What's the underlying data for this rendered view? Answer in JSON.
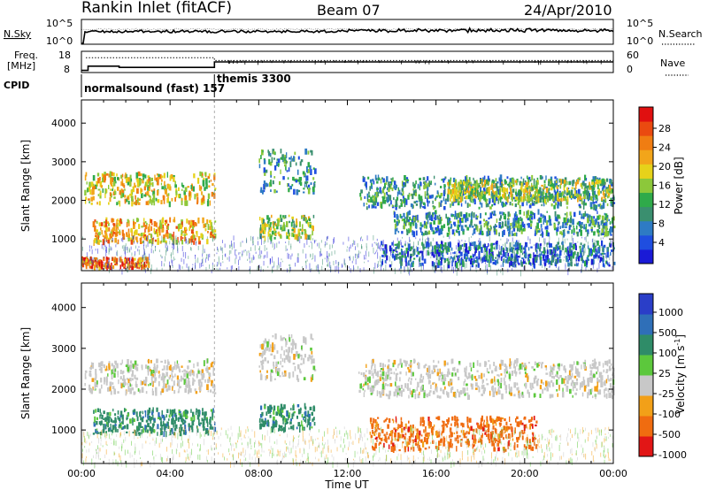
{
  "header": {
    "title": "Rankin Inlet (fitACF)",
    "beam": "Beam 07",
    "date": "24/Apr/2010"
  },
  "strip_panels": {
    "nsky_label": "N.Sky",
    "nsky_ticks": [
      "10^5",
      "10^0"
    ],
    "nsearch_label": "N.Search",
    "nsearch_ticks": [
      "10^5",
      "10^0"
    ],
    "freq_label_top": "Freq.",
    "freq_label_bottom": "[MHz]",
    "freq_ticks": [
      "18",
      "8"
    ],
    "nave_label": "Nave",
    "nave_ticks": [
      "60",
      "0"
    ],
    "cpid_label": "CPID",
    "modes": [
      {
        "name": "normalsound (fast) 157",
        "start_hour": 0,
        "end_hour": 6
      },
      {
        "name": "themis 3300",
        "start_hour": 6,
        "end_hour": 24
      }
    ]
  },
  "power_colorbar": {
    "title": "Power [dB]",
    "ticks": [
      "28",
      "24",
      "20",
      "16",
      "12",
      "8",
      "4"
    ],
    "colors": [
      "#1a1ad6",
      "#1f4ee0",
      "#2e7bc4",
      "#3a8f6f",
      "#2faa4a",
      "#8cc83a",
      "#e6d21a",
      "#f2a51a",
      "#f07d12",
      "#ea4a10",
      "#e01010"
    ]
  },
  "velocity_colorbar": {
    "title": "Velocity [m s",
    "title_exponent": "-1",
    "title_close": "]",
    "ticks": [
      "1000",
      "500",
      "100",
      "25",
      "-25",
      "-100",
      "-500",
      "-1000"
    ],
    "colors": [
      "#2a3ec8",
      "#2f6fb8",
      "#2f8c68",
      "#5cc83c",
      "#c8c8c8",
      "#f2a018",
      "#f06c10",
      "#e21616"
    ]
  },
  "chart_data": [
    {
      "type": "heatmap",
      "panel": "power",
      "ylabel": "Slant Range [km]",
      "xlim": [
        0,
        24
      ],
      "ylim": [
        180,
        4600
      ],
      "yticks": [
        1000,
        2000,
        3000,
        4000
      ],
      "series": [
        {
          "start_hour": 0.1,
          "end_hour": 6.0,
          "range_km": [
            1900,
            2700
          ],
          "power_db": 18
        },
        {
          "start_hour": 0.5,
          "end_hour": 6.0,
          "range_km": [
            900,
            1500
          ],
          "power_db": 22
        },
        {
          "start_hour": 0.0,
          "end_hour": 3.0,
          "range_km": [
            250,
            500
          ],
          "power_db": 24
        },
        {
          "start_hour": 8.0,
          "end_hour": 10.5,
          "range_km": [
            2200,
            3300
          ],
          "power_db": 10
        },
        {
          "start_hour": 8.0,
          "end_hour": 10.5,
          "range_km": [
            1000,
            1600
          ],
          "power_db": 14
        },
        {
          "start_hour": 12.5,
          "end_hour": 24.0,
          "range_km": [
            1800,
            2600
          ],
          "power_db": 10
        },
        {
          "start_hour": 14.0,
          "end_hour": 24.0,
          "range_km": [
            1100,
            1700
          ],
          "power_db": 9
        },
        {
          "start_hour": 13.5,
          "end_hour": 24.0,
          "range_km": [
            300,
            900
          ],
          "power_db": 7
        },
        {
          "start_hour": 16.5,
          "end_hour": 24.0,
          "range_km": [
            2000,
            2500
          ],
          "power_db": 16
        }
      ]
    },
    {
      "type": "heatmap",
      "panel": "velocity",
      "ylabel": "Slant Range [km]",
      "xlabel": "Time UT",
      "xlim": [
        0,
        24
      ],
      "ylim": [
        180,
        4600
      ],
      "yticks": [
        1000,
        2000,
        3000,
        4000
      ],
      "xticks": [
        "00:00",
        "04:00",
        "08:00",
        "12:00",
        "16:00",
        "20:00",
        "00:00"
      ],
      "series": [
        {
          "start_hour": 0.1,
          "end_hour": 6.0,
          "range_km": [
            1900,
            2700
          ],
          "velocity_ms": 0
        },
        {
          "start_hour": 0.5,
          "end_hour": 6.0,
          "range_km": [
            900,
            1500
          ],
          "velocity_ms": 200
        },
        {
          "start_hour": 8.0,
          "end_hour": 10.5,
          "range_km": [
            2200,
            3300
          ],
          "velocity_ms": 0
        },
        {
          "start_hour": 8.0,
          "end_hour": 10.5,
          "range_km": [
            1000,
            1600
          ],
          "velocity_ms": 300
        },
        {
          "start_hour": 12.5,
          "end_hour": 24.0,
          "range_km": [
            1800,
            2700
          ],
          "velocity_ms": 0
        },
        {
          "start_hour": 13.0,
          "end_hour": 20.5,
          "range_km": [
            500,
            1300
          ],
          "velocity_ms": -300
        }
      ]
    }
  ]
}
